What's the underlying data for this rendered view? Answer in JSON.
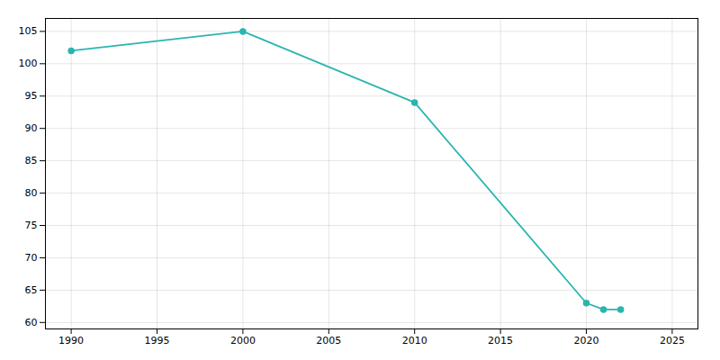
{
  "chart_data": {
    "type": "line",
    "x": [
      1990,
      2000,
      2010,
      2020,
      2021,
      2022
    ],
    "values": [
      102,
      105,
      94,
      63,
      62,
      62
    ],
    "color": "#2ab5b0",
    "marker": "circle",
    "xlim": [
      1988.5,
      2026.5
    ],
    "ylim": [
      59,
      107
    ],
    "xticks": [
      1990,
      1995,
      2000,
      2005,
      2010,
      2015,
      2020,
      2025
    ],
    "yticks": [
      60,
      65,
      70,
      75,
      80,
      85,
      90,
      95,
      100,
      105
    ],
    "grid": true
  }
}
